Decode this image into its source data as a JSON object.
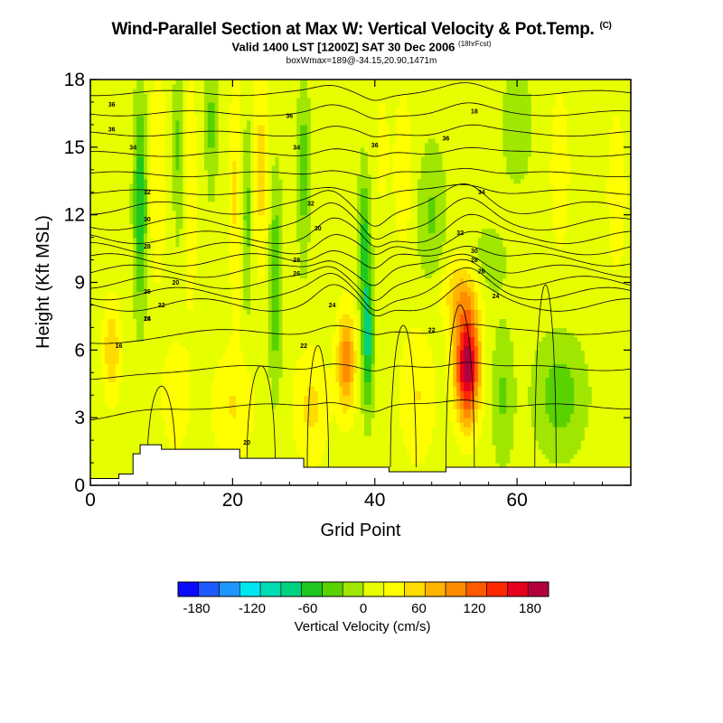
{
  "title": "Wind-Parallel Section at Max W: Vertical Velocity & Pot.Temp.",
  "title_mark": "(C)",
  "subtitle": "Valid 1400 LST [1200Z] SAT 30 Dec 2006",
  "subtitle_tag": "(18hrFcst)",
  "subtitle2": "boxWmax=189@-34.15,20.90,1471m",
  "chart_data": {
    "type": "heatmap",
    "xlabel": "Grid Point",
    "ylabel": "Height (Kft MSL)",
    "xlim": [
      0,
      76
    ],
    "ylim": [
      0,
      18
    ],
    "xticks": [
      "0",
      "20",
      "40",
      "60"
    ],
    "yticks": [
      "0",
      "3",
      "6",
      "9",
      "12",
      "15",
      "18"
    ],
    "colorbar": {
      "label": "Vertical Velocity (cm/s)",
      "ticks": [
        "-180",
        "-120",
        "-60",
        "0",
        "60",
        "120",
        "180"
      ],
      "range": [
        -200,
        200
      ],
      "colors": [
        "#0a0aff",
        "#1e5aff",
        "#1e96ff",
        "#00e6f0",
        "#00dcb4",
        "#00d282",
        "#1ec81e",
        "#5ad200",
        "#a0e600",
        "#e6ff00",
        "#ffff00",
        "#ffdc00",
        "#ffb400",
        "#ff8c00",
        "#ff5a00",
        "#ff2800",
        "#e6001e",
        "#b4003c"
      ]
    },
    "features": [
      {
        "kind": "updraft",
        "x": 53,
        "z": 5.3,
        "w": 189
      },
      {
        "kind": "updraft",
        "x": 36,
        "z": 5.5,
        "w": 100
      },
      {
        "kind": "updraft",
        "x": 24,
        "z": 14,
        "w": 50
      },
      {
        "kind": "updraft",
        "x": 9,
        "z": 15,
        "w": 35
      },
      {
        "kind": "updraft",
        "x": 3,
        "z": 6,
        "w": 55
      },
      {
        "kind": "downdraft",
        "x": 39,
        "z": 6.5,
        "w": -85
      },
      {
        "kind": "downdraft",
        "x": 7,
        "z": 13,
        "w": -75
      },
      {
        "kind": "downdraft",
        "x": 26,
        "z": 9,
        "w": -55
      }
    ],
    "theta_contour_labels": [
      "36",
      "36",
      "34",
      "32",
      "30",
      "28",
      "26",
      "24",
      "22",
      "20",
      "18",
      "16",
      "36",
      "36",
      "34",
      "32",
      "30",
      "28",
      "26",
      "24",
      "22",
      "20",
      "18",
      "36",
      "34",
      "32",
      "30",
      "28",
      "26",
      "24",
      "22"
    ],
    "terrain_kft": [
      0.3,
      0.3,
      0.3,
      0.3,
      0.5,
      0.5,
      1.4,
      1.8,
      1.8,
      1.8,
      1.6,
      1.6,
      1.6,
      1.6,
      1.6,
      1.6,
      1.6,
      1.6,
      1.6,
      1.6,
      1.6,
      1.2,
      1.2,
      1.2,
      1.2,
      1.2,
      1.2,
      1.2,
      1.2,
      1.2,
      0.8,
      0.8,
      0.8,
      0.8,
      0.8,
      0.8,
      0.8,
      0.8,
      0.8,
      0.8,
      0.8,
      0.8,
      0.6,
      0.6,
      0.6,
      0.6,
      0.6,
      0.6,
      0.6,
      0.6,
      0.8,
      0.8,
      0.8,
      0.8,
      0.8,
      0.8,
      0.8,
      0.8,
      0.8,
      0.8,
      0.8,
      0.8,
      0.8,
      0.8,
      0.8,
      0.8,
      0.8,
      0.8,
      0.8,
      0.8,
      0.8,
      0.8,
      0.8,
      0.8,
      0.8,
      0.8,
      0.8
    ]
  }
}
